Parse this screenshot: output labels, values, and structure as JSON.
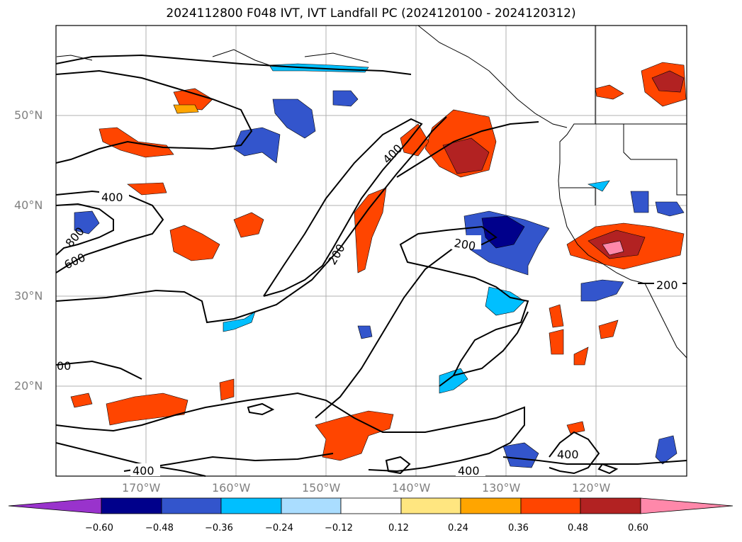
{
  "title": "2024112800 F048 IVT, IVT Landfall PC (2024120100 - 2024120312)",
  "latitude_labels": [
    "50°N",
    "40°N",
    "30°N",
    "20°N"
  ],
  "longitude_labels": [
    "170°W",
    "160°W",
    "150°W",
    "140°W",
    "130°W",
    "120°W"
  ],
  "contour_labels": [
    "400",
    "800",
    "600",
    "400",
    "200",
    "200",
    "200",
    "00",
    "400",
    "400",
    "400"
  ],
  "colorbar": {
    "ticks": [
      "−0.60",
      "−0.48",
      "−0.36",
      "−0.24",
      "−0.12",
      "0.12",
      "0.24",
      "0.36",
      "0.48",
      "0.60"
    ],
    "colors": [
      "#9933cc",
      "#00008b",
      "#3355cc",
      "#00bfff",
      "#aaddff",
      "#ffffff",
      "#ffe680",
      "#ffa500",
      "#ff4500",
      "#b22222",
      "#ff88aa"
    ]
  }
}
